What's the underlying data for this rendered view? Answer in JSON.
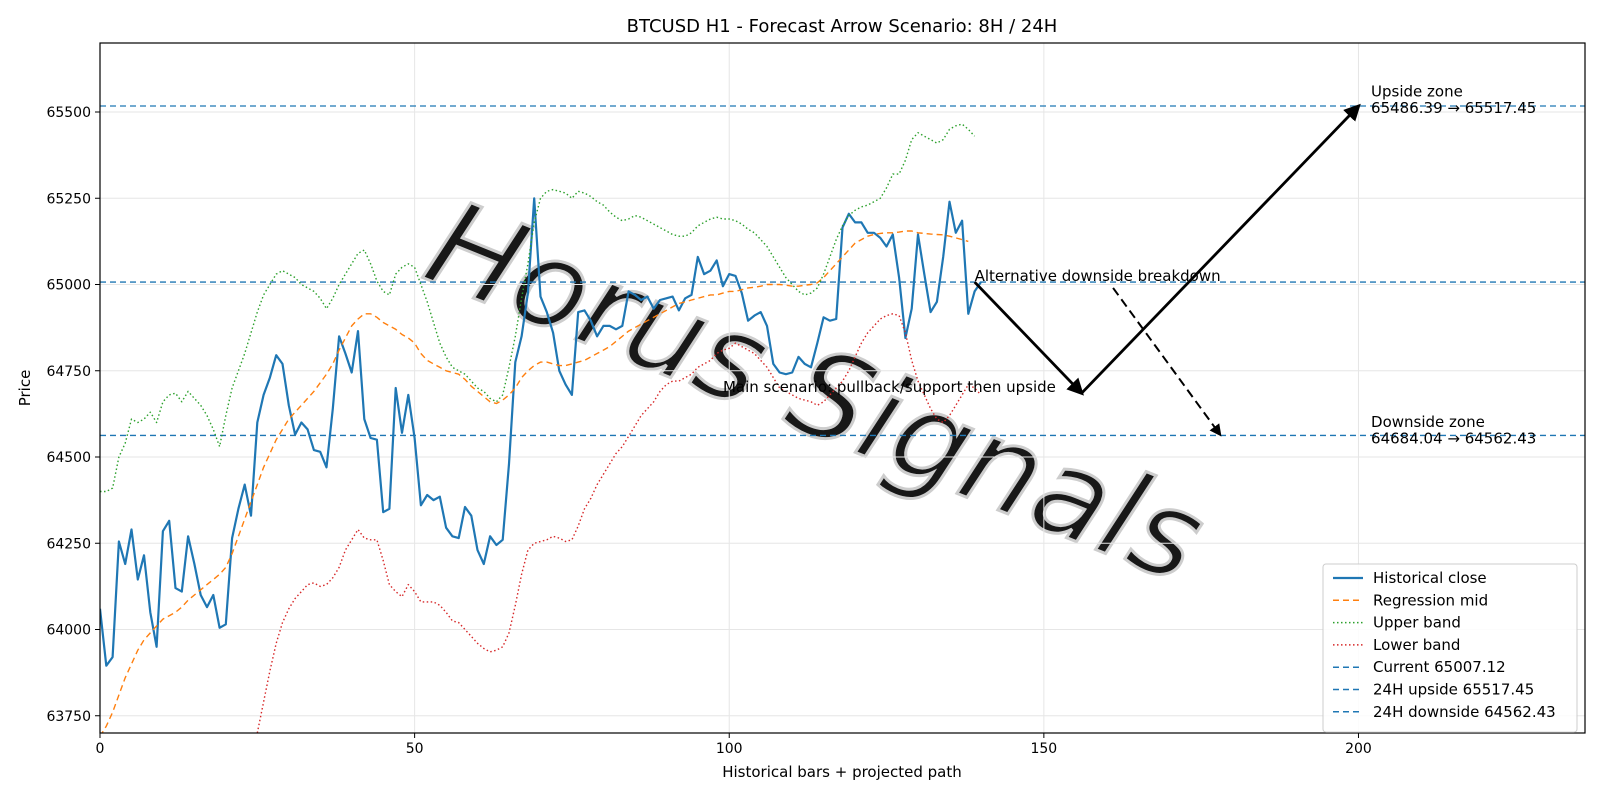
{
  "chart_data": {
    "type": "line",
    "title": "BTCUSD H1 - Forecast Arrow Scenario: 8H / 24H",
    "xlabel": "Historical bars + projected path",
    "ylabel": "Price",
    "xlim": [
      0,
      236
    ],
    "ylim": [
      63700,
      65700
    ],
    "x_ticks": [
      0,
      50,
      100,
      150,
      200
    ],
    "y_ticks": [
      63750,
      64000,
      64250,
      64500,
      64750,
      65000,
      65250,
      65500
    ],
    "grid": true,
    "legend_position": "lower-right",
    "watermark": "Horus Signals",
    "series": [
      {
        "name": "Historical close",
        "style": "solid",
        "color": "#1f77b4",
        "values": [
          64060,
          63895,
          63920,
          64255,
          64190,
          64290,
          64145,
          64215,
          64050,
          63950,
          64285,
          64315,
          64120,
          64110,
          64270,
          64190,
          64100,
          64065,
          64100,
          64005,
          64015,
          64265,
          64350,
          64420,
          64330,
          64600,
          64680,
          64730,
          64795,
          64770,
          64650,
          64565,
          64600,
          64580,
          64520,
          64515,
          64470,
          64640,
          64850,
          64800,
          64745,
          64865,
          64610,
          64555,
          64550,
          64340,
          64350,
          64700,
          64570,
          64680,
          64555,
          64360,
          64390,
          64375,
          64385,
          64295,
          64270,
          64265,
          64355,
          64330,
          64230,
          64190,
          64270,
          64245,
          64260,
          64480,
          64775,
          64850,
          64975,
          65250,
          64965,
          64920,
          64860,
          64750,
          64710,
          64680,
          64920,
          64925,
          64895,
          64850,
          64880,
          64880,
          64870,
          64880,
          64980,
          64970,
          64955,
          64965,
          64930,
          64955,
          64960,
          64965,
          64925,
          64960,
          64970,
          65080,
          65030,
          65040,
          65070,
          64995,
          65030,
          65025,
          64975,
          64895,
          64910,
          64920,
          64880,
          64770,
          64745,
          64740,
          64745,
          64790,
          64770,
          64760,
          64830,
          64905,
          64895,
          64900,
          65165,
          65205,
          65180,
          65180,
          65150,
          65150,
          65135,
          65110,
          65145,
          65020,
          64845,
          64930,
          65145,
          65030,
          64920,
          64950,
          65080,
          65240,
          65150,
          65185,
          64915,
          64980,
          65007
        ]
      },
      {
        "name": "Regression mid",
        "style": "dashed",
        "color": "#ff7f0e",
        "values": [
          63690,
          63720,
          63760,
          63810,
          63860,
          63900,
          63940,
          63970,
          63990,
          64010,
          64030,
          64040,
          64050,
          64065,
          64085,
          64100,
          64115,
          64130,
          64145,
          64160,
          64180,
          64220,
          64270,
          64320,
          64370,
          64420,
          64470,
          64510,
          64550,
          64580,
          64610,
          64630,
          64650,
          64670,
          64690,
          64715,
          64740,
          64770,
          64810,
          64845,
          64880,
          64900,
          64915,
          64915,
          64905,
          64890,
          64880,
          64870,
          64855,
          64845,
          64830,
          64800,
          64780,
          64770,
          64760,
          64750,
          64745,
          64740,
          64725,
          64705,
          64690,
          64675,
          64660,
          64655,
          64665,
          64680,
          64700,
          64730,
          64750,
          64765,
          64775,
          64775,
          64770,
          64765,
          64765,
          64770,
          64775,
          64780,
          64790,
          64800,
          64810,
          64820,
          64835,
          64850,
          64865,
          64875,
          64885,
          64895,
          64905,
          64915,
          64925,
          64935,
          64945,
          64950,
          64955,
          64960,
          64965,
          64970,
          64970,
          64975,
          64980,
          64980,
          64985,
          64990,
          64992,
          64995,
          65000,
          65000,
          65000,
          64998,
          64995,
          64995,
          64998,
          65000,
          65005,
          65020,
          65040,
          65060,
          65080,
          65100,
          65120,
          65130,
          65140,
          65145,
          65148,
          65150,
          65150,
          65152,
          65155,
          65155,
          65150,
          65148,
          65146,
          65145,
          65144,
          65140,
          65135,
          65130,
          65125
        ]
      },
      {
        "name": "Upper band",
        "style": "dotted",
        "color": "#2ca02c",
        "values": [
          64400,
          64400,
          64410,
          64500,
          64540,
          64610,
          64600,
          64610,
          64630,
          64600,
          64660,
          64680,
          64685,
          64660,
          64690,
          64670,
          64650,
          64620,
          64580,
          64530,
          64620,
          64700,
          64750,
          64800,
          64860,
          64920,
          64970,
          65000,
          65030,
          65040,
          65030,
          65020,
          65000,
          64990,
          64980,
          64960,
          64930,
          64960,
          65000,
          65030,
          65060,
          65090,
          65100,
          65060,
          65010,
          64980,
          64970,
          65030,
          65050,
          65060,
          65050,
          65000,
          64950,
          64890,
          64830,
          64790,
          64760,
          64750,
          64740,
          64720,
          64700,
          64690,
          64670,
          64660,
          64680,
          64760,
          64850,
          64960,
          65060,
          65180,
          65250,
          65270,
          65275,
          65270,
          65265,
          65250,
          65270,
          65265,
          65255,
          65240,
          65230,
          65210,
          65195,
          65185,
          65190,
          65200,
          65195,
          65185,
          65175,
          65165,
          65155,
          65145,
          65140,
          65140,
          65150,
          65170,
          65180,
          65190,
          65195,
          65190,
          65190,
          65185,
          65175,
          65160,
          65150,
          65130,
          65110,
          65080,
          65050,
          65020,
          65000,
          64980,
          64970,
          64975,
          64990,
          65030,
          65080,
          65130,
          65170,
          65200,
          65215,
          65225,
          65230,
          65240,
          65250,
          65280,
          65320,
          65320,
          65360,
          65420,
          65440,
          65430,
          65420,
          65410,
          65420,
          65450,
          65460,
          65465,
          65450,
          65430
        ]
      },
      {
        "name": "Lower band",
        "style": "dotted",
        "color": "#d62728",
        "values": [
          null,
          null,
          null,
          null,
          null,
          null,
          null,
          null,
          null,
          null,
          null,
          null,
          null,
          null,
          null,
          null,
          null,
          null,
          null,
          null,
          null,
          null,
          null,
          null,
          null,
          63700,
          63790,
          63880,
          63960,
          64020,
          64060,
          64090,
          64110,
          64130,
          64135,
          64125,
          64130,
          64150,
          64180,
          64230,
          64260,
          64290,
          64265,
          64260,
          64260,
          64200,
          64130,
          64110,
          64095,
          64130,
          64110,
          64080,
          64080,
          64080,
          64070,
          64050,
          64025,
          64020,
          64000,
          63980,
          63960,
          63945,
          63935,
          63940,
          63950,
          63990,
          64070,
          64160,
          64230,
          64250,
          64255,
          64260,
          64270,
          64265,
          64255,
          64260,
          64300,
          64350,
          64380,
          64420,
          64450,
          64480,
          64510,
          64530,
          64560,
          64590,
          64620,
          64640,
          64660,
          64690,
          64710,
          64720,
          64720,
          64730,
          64740,
          64760,
          64770,
          64780,
          64800,
          64810,
          64815,
          64830,
          64820,
          64810,
          64800,
          64780,
          64760,
          64730,
          64700,
          64690,
          64680,
          64670,
          64665,
          64660,
          64650,
          64660,
          64680,
          64700,
          64720,
          64750,
          64790,
          64830,
          64860,
          64880,
          64900,
          64910,
          64915,
          64910,
          64860,
          64780,
          64720,
          64680,
          64640,
          64610,
          64600,
          64620,
          64650,
          64680,
          64710,
          64700,
          64680
        ]
      }
    ],
    "hlines": [
      {
        "name": "Current 65007.12",
        "y": 65007.12,
        "color": "#1f77b4",
        "style": "dashed"
      },
      {
        "name": "24H upside 65517.45",
        "y": 65517.45,
        "color": "#1f77b4",
        "style": "dashed"
      },
      {
        "name": "24H downside 64562.43",
        "y": 64562.43,
        "color": "#1f77b4",
        "style": "dashed"
      }
    ],
    "arrows": [
      {
        "label": "main-leg-1",
        "from": [
          139,
          65007
        ],
        "to": [
          156,
          64685
        ],
        "style": "solid"
      },
      {
        "label": "main-leg-2",
        "from": [
          156,
          64685
        ],
        "to": [
          200,
          65517
        ],
        "style": "solid"
      },
      {
        "label": "alternative-leg",
        "from": [
          161,
          64990
        ],
        "to": [
          178,
          64565
        ],
        "style": "dashed"
      }
    ],
    "annotations": [
      {
        "text": "Upside zone",
        "x": 202,
        "y": 65545
      },
      {
        "text": "65486.39 → 65517.45",
        "x": 202,
        "y": 65497
      },
      {
        "text": "Downside zone",
        "x": 202,
        "y": 64587
      },
      {
        "text": "64684.04 → 64562.43",
        "x": 202,
        "y": 64539
      },
      {
        "text": "Alternative downside breakdown",
        "x": 139,
        "y": 65010
      },
      {
        "text": "Main scenario: pullback/support then upside",
        "x": 99,
        "y": 64688
      }
    ],
    "legend": [
      "Historical close",
      "Regression mid",
      "Upper band",
      "Lower band",
      "Current 65007.12",
      "24H upside 65517.45",
      "24H downside 64562.43"
    ]
  }
}
